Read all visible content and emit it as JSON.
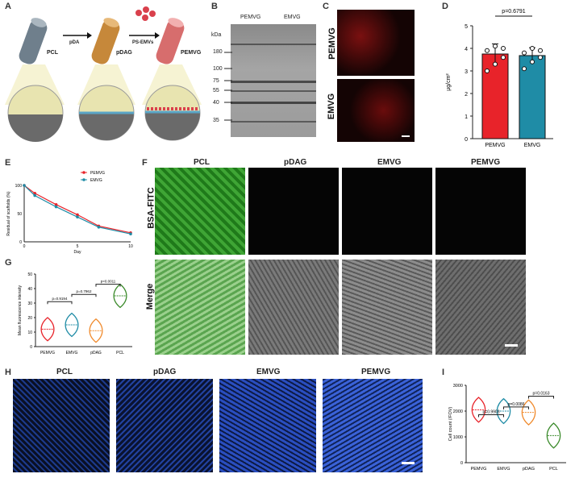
{
  "panels": {
    "A": "A",
    "B": "B",
    "C": "C",
    "D": "D",
    "E": "E",
    "F": "F",
    "G": "G",
    "H": "H",
    "I": "I"
  },
  "panelA": {
    "steps": [
      "PCL",
      "pDAG",
      "PEMVG"
    ],
    "arrows": [
      "pDA",
      "PS-EMVs"
    ]
  },
  "panelB": {
    "lanes": [
      "PEMVG",
      "EMVG"
    ],
    "unit": "kDa",
    "markers": [
      "180",
      "100",
      "75",
      "55",
      "40",
      "35"
    ]
  },
  "panelC": {
    "rows": [
      "PEMVG",
      "EMVG"
    ]
  },
  "panelE": {
    "legend": [
      "PEMVG",
      "EMVG"
    ],
    "xlabel": "Day",
    "ylabel": "Residual of scaffolds (%)",
    "xticks": [
      "0",
      "5",
      "10"
    ],
    "yticks": [
      "0",
      "50",
      "100"
    ]
  },
  "panelF": {
    "cols": [
      "PCL",
      "pDAG",
      "EMVG",
      "PEMVG"
    ],
    "rows": [
      "BSA-FITC",
      "Merge"
    ]
  },
  "panelH": {
    "cols": [
      "PCL",
      "pDAG",
      "EMVG",
      "PEMVG"
    ]
  },
  "colors": {
    "pemvg": "#e8232a",
    "emvg": "#1f8ca6",
    "pdag": "#f08a2c",
    "pcl": "#3a8a2a"
  },
  "chart_data": [
    {
      "id": "D",
      "type": "bar",
      "categories": [
        "PEMVG",
        "EMVG"
      ],
      "values": [
        3.75,
        3.68
      ],
      "errors": [
        0.45,
        0.35
      ],
      "points": [
        [
          3.0,
          3.3,
          3.6,
          3.9,
          4.1,
          4.0
        ],
        [
          3.1,
          3.4,
          3.6,
          3.8,
          4.0,
          3.9
        ]
      ],
      "ylabel": "μg/cm²",
      "yticks": [
        "0",
        "1",
        "2",
        "3",
        "4",
        "5"
      ],
      "ylim": [
        0,
        5
      ],
      "pvalue": "p=0.6791"
    },
    {
      "id": "E",
      "type": "line",
      "x": [
        0,
        1,
        3,
        5,
        7,
        10
      ],
      "series": [
        {
          "name": "PEMVG",
          "values": [
            100,
            86,
            66,
            48,
            28,
            16
          ]
        },
        {
          "name": "EMVG",
          "values": [
            100,
            82,
            62,
            44,
            26,
            14
          ]
        }
      ],
      "xlim": [
        0,
        10
      ],
      "ylim": [
        0,
        100
      ]
    },
    {
      "id": "G",
      "type": "violin",
      "categories": [
        "PEMVG",
        "EMVG",
        "pDAG",
        "PCL"
      ],
      "medians": [
        12,
        15,
        11,
        35
      ],
      "ylabel": "Mean fluorescence intensity",
      "yticks": [
        "0",
        "10",
        "20",
        "30",
        "40",
        "50"
      ],
      "ylim": [
        0,
        50
      ],
      "pvalues": [
        "p=0.9194",
        "p=0.7962",
        "p<0.0011"
      ]
    },
    {
      "id": "I",
      "type": "violin",
      "categories": [
        "PEMVG",
        "EMVG",
        "pDAG",
        "PCL"
      ],
      "medians": [
        2050,
        2000,
        1950,
        1050
      ],
      "ylabel": "Cell count (/FOV)",
      "yticks": [
        "0",
        "1000",
        "2000",
        "3000"
      ],
      "ylim": [
        0,
        3000
      ],
      "pvalues": [
        "p=0.9903",
        "p=0.0086",
        "p=0.0163"
      ]
    }
  ]
}
